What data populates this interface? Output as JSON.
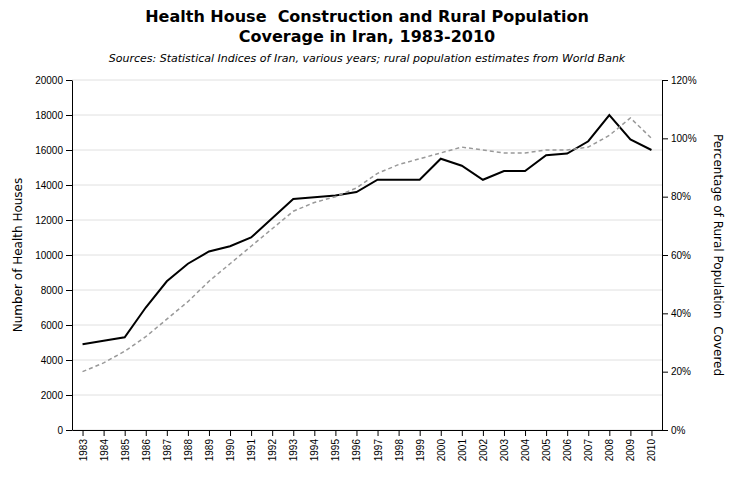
{
  "chart_data": {
    "type": "line",
    "title": [
      "Health House  Construction and Rural Population",
      "Coverage in Iran, 1983-2010"
    ],
    "subtitle": "Sources: Statistical Indices of Iran, various years; rural population estimates from World Bank",
    "y_label": "Number of Health Houses",
    "y2_label": "Percentage of Rural Population  Covered",
    "x": [
      1983,
      1984,
      1985,
      1986,
      1987,
      1988,
      1989,
      1990,
      1991,
      1992,
      1993,
      1994,
      1995,
      1996,
      1997,
      1998,
      1999,
      2000,
      2001,
      2002,
      2003,
      2004,
      2005,
      2006,
      2007,
      2008,
      2009,
      2010
    ],
    "xlim": [
      1982.5,
      2010.5
    ],
    "xticks": [
      1983,
      1984,
      1985,
      1986,
      1987,
      1988,
      1989,
      1990,
      1991,
      1992,
      1993,
      1994,
      1995,
      1996,
      1997,
      1998,
      1999,
      2000,
      2001,
      2002,
      2003,
      2004,
      2005,
      2006,
      2007,
      2008,
      2009,
      2010
    ],
    "ylim": [
      0,
      20000
    ],
    "yticks": [
      0,
      2000,
      4000,
      6000,
      8000,
      10000,
      12000,
      14000,
      16000,
      18000,
      20000
    ],
    "y2lim": [
      0,
      1.2
    ],
    "y2ticks": [
      {
        "value": 0.0,
        "label": "0%"
      },
      {
        "value": 0.2,
        "label": "20%"
      },
      {
        "value": 0.4,
        "label": "40%"
      },
      {
        "value": 0.6,
        "label": "60%"
      },
      {
        "value": 0.8,
        "label": "80%"
      },
      {
        "value": 1.0,
        "label": "100%"
      },
      {
        "value": 1.2,
        "label": "120%"
      }
    ],
    "grid": true,
    "series": [
      {
        "color": "#000000",
        "line_style": "solid",
        "values": [
          4900,
          5100,
          5300,
          7000,
          8500,
          9500,
          10200,
          10500,
          11000,
          12100,
          13200,
          13300,
          13400,
          13600,
          14300,
          14300,
          14300,
          15500,
          15100,
          14300,
          14800,
          14800,
          15700,
          15800,
          16500,
          18000,
          16600,
          16000
        ]
      },
      {
        "color": "#999999",
        "line_style": "dashed",
        "axis": "y2",
        "values": [
          0.2,
          0.23,
          0.27,
          0.32,
          0.38,
          0.44,
          0.51,
          0.57,
          0.63,
          0.69,
          0.75,
          0.78,
          0.8,
          0.83,
          0.88,
          0.91,
          0.93,
          0.95,
          0.97,
          0.96,
          0.95,
          0.95,
          0.96,
          0.96,
          0.97,
          1.01,
          1.07,
          1.0
        ]
      }
    ]
  }
}
